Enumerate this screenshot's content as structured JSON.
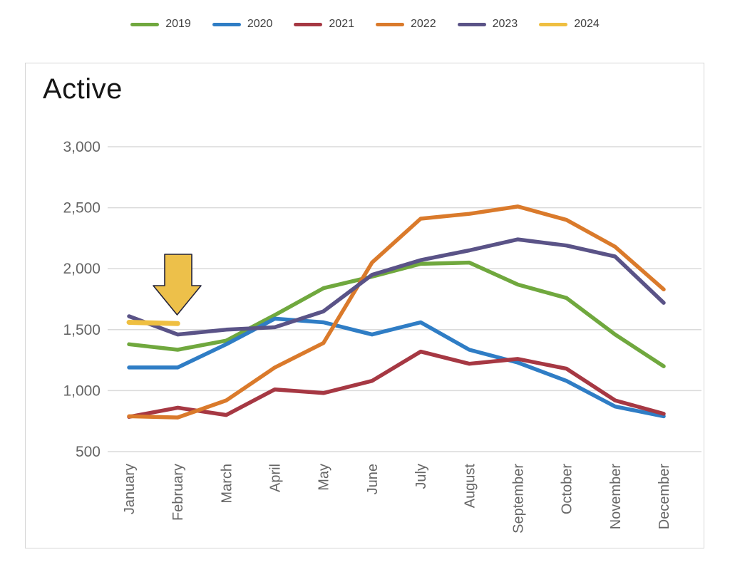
{
  "chart_data": {
    "type": "line",
    "title": "Active",
    "legend_position": "top",
    "grid": "horizontal",
    "ylim": [
      500,
      3000
    ],
    "categories": [
      "January",
      "February",
      "March",
      "April",
      "May",
      "June",
      "July",
      "August",
      "September",
      "October",
      "November",
      "December"
    ],
    "y_ticks": [
      {
        "value": 3000,
        "label": "3,000"
      },
      {
        "value": 2500,
        "label": "2,500"
      },
      {
        "value": 2000,
        "label": "2,000"
      },
      {
        "value": 1500,
        "label": "1,500"
      },
      {
        "value": 1000,
        "label": "1,000"
      },
      {
        "value": 500,
        "label": "500"
      }
    ],
    "series": [
      {
        "name": "2019",
        "color": "#70A83E",
        "values": [
          1380,
          1335,
          1410,
          1620,
          1840,
          1935,
          2040,
          2050,
          1870,
          1760,
          1460,
          1200
        ]
      },
      {
        "name": "2020",
        "color": "#2F7DC5",
        "values": [
          1190,
          1190,
          1380,
          1590,
          1560,
          1460,
          1560,
          1335,
          1230,
          1080,
          870,
          790
        ]
      },
      {
        "name": "2021",
        "color": "#A63843",
        "values": [
          785,
          860,
          800,
          1010,
          980,
          1080,
          1320,
          1220,
          1260,
          1180,
          920,
          810
        ]
      },
      {
        "name": "2022",
        "color": "#DA7A2B",
        "values": [
          790,
          780,
          920,
          1190,
          1390,
          2050,
          2410,
          2450,
          2510,
          2400,
          2180,
          1830
        ]
      },
      {
        "name": "2023",
        "color": "#5A5387",
        "values": [
          1610,
          1460,
          1500,
          1520,
          1650,
          1950,
          2070,
          2150,
          2240,
          2190,
          2100,
          1720
        ]
      },
      {
        "name": "2024",
        "color": "#EFBF41",
        "values": [
          1560,
          1550,
          null,
          null,
          null,
          null,
          null,
          null,
          null,
          null,
          null,
          null
        ]
      }
    ],
    "annotation": {
      "shape": "down-arrow",
      "points_at": "February 2024 data point",
      "fill": "#EDC04A",
      "outline": "#23233A"
    }
  }
}
